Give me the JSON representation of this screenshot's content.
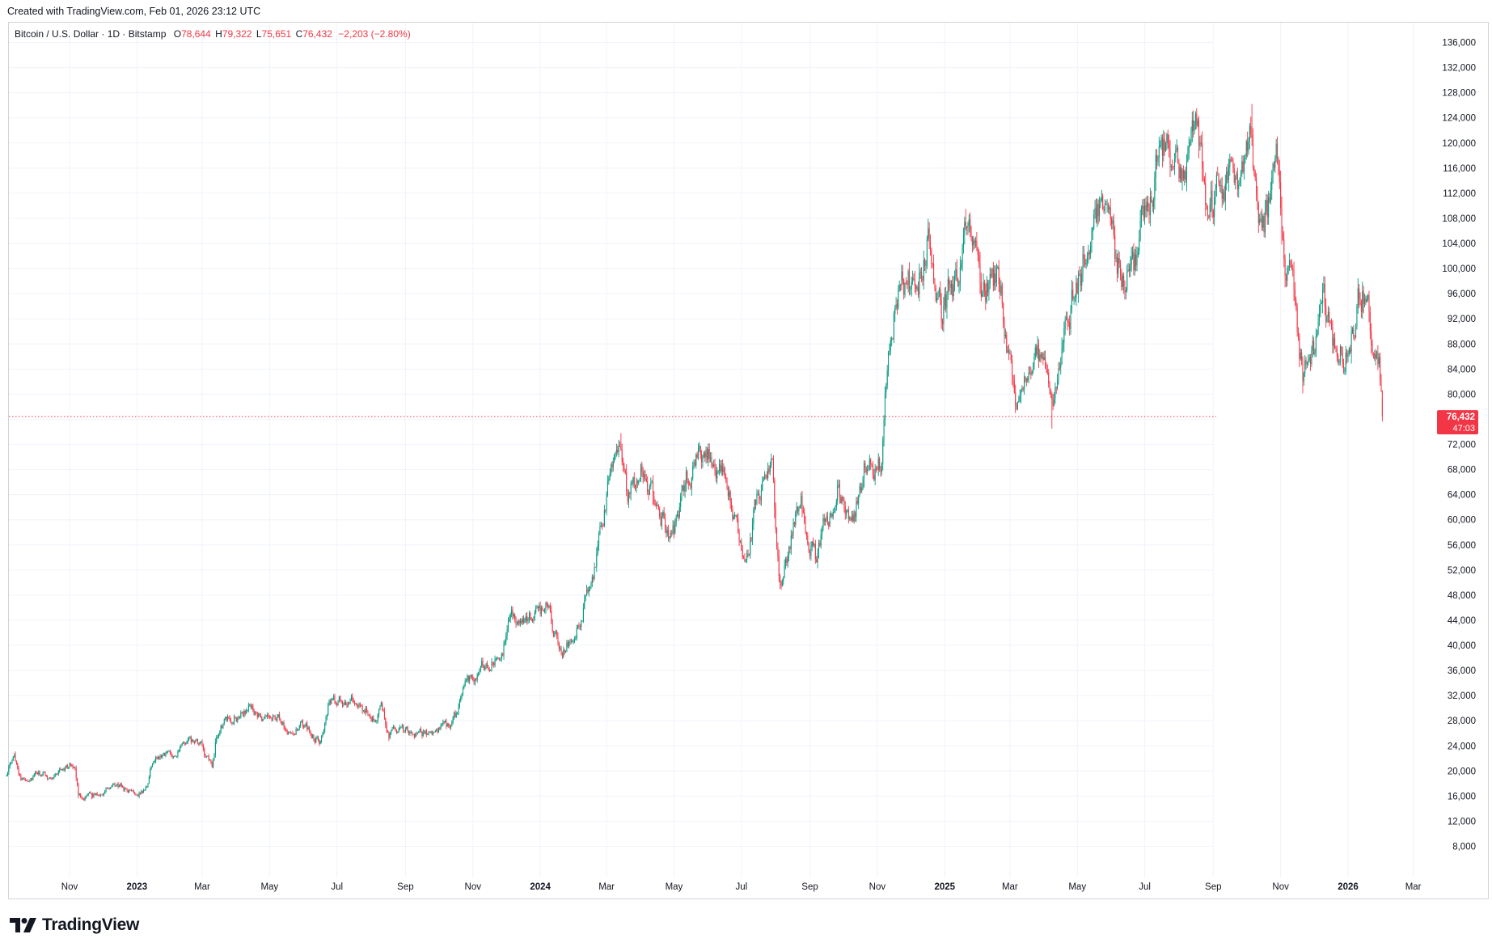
{
  "header": {
    "created_text": "Created with TradingView.com, Feb 01, 2026 23:12 UTC"
  },
  "legend": {
    "symbol": "Bitcoin / U.S. Dollar · 1D · Bitstamp",
    "open_label": "O",
    "open": "78,644",
    "high_label": "H",
    "high": "79,322",
    "low_label": "L",
    "low": "75,651",
    "close_label": "C",
    "close": "76,432",
    "change": "−2,203 (−2.80%)"
  },
  "price_tag": {
    "price": "76,432",
    "countdown": "47:03"
  },
  "footer": {
    "brand": "TradingView"
  },
  "colors": {
    "up": "#089981",
    "down": "#f23645",
    "grid": "#f0f3fa",
    "axis_text": "#131722",
    "border": "#d1d4dc"
  },
  "chart_data": {
    "type": "candlestick",
    "interval": "1D",
    "y_axis": {
      "ticks": [
        8000,
        12000,
        16000,
        20000,
        24000,
        28000,
        32000,
        36000,
        40000,
        44000,
        48000,
        52000,
        56000,
        60000,
        64000,
        68000,
        72000,
        76000,
        80000,
        84000,
        88000,
        92000,
        96000,
        100000,
        104000,
        108000,
        112000,
        116000,
        120000,
        124000,
        128000,
        132000,
        136000
      ],
      "tick_labels": [
        "8,000",
        "12,000",
        "16,000",
        "20,000",
        "24,000",
        "28,000",
        "32,000",
        "36,000",
        "40,000",
        "44,000",
        "48,000",
        "52,000",
        "56,000",
        "60,000",
        "64,000",
        "68,000",
        "72,000",
        "76,000",
        "80,000",
        "84,000",
        "88,000",
        "92,000",
        "96,000",
        "100,000",
        "104,000",
        "108,000",
        "112,000",
        "116,000",
        "120,000",
        "124,000",
        "128,000",
        "132,000",
        "136,000"
      ],
      "position": "right"
    },
    "x_axis": {
      "ticks": [
        {
          "label": "Nov",
          "date": "2022-11-01",
          "bold": false
        },
        {
          "label": "2023",
          "date": "2023-01-01",
          "bold": true
        },
        {
          "label": "Mar",
          "date": "2023-03-01",
          "bold": false
        },
        {
          "label": "May",
          "date": "2023-05-01",
          "bold": false
        },
        {
          "label": "Jul",
          "date": "2023-07-01",
          "bold": false
        },
        {
          "label": "Sep",
          "date": "2023-09-01",
          "bold": false
        },
        {
          "label": "Nov",
          "date": "2023-11-01",
          "bold": false
        },
        {
          "label": "2024",
          "date": "2024-01-01",
          "bold": true
        },
        {
          "label": "Mar",
          "date": "2024-03-01",
          "bold": false
        },
        {
          "label": "May",
          "date": "2024-05-01",
          "bold": false
        },
        {
          "label": "Jul",
          "date": "2024-07-01",
          "bold": false
        },
        {
          "label": "Sep",
          "date": "2024-09-01",
          "bold": false
        },
        {
          "label": "Nov",
          "date": "2024-11-01",
          "bold": false
        },
        {
          "label": "2025",
          "date": "2025-01-01",
          "bold": true
        },
        {
          "label": "Mar",
          "date": "2025-03-01",
          "bold": false
        },
        {
          "label": "May",
          "date": "2025-05-01",
          "bold": false
        },
        {
          "label": "Jul",
          "date": "2025-07-01",
          "bold": false
        },
        {
          "label": "Sep",
          "date": "2025-09-01",
          "bold": false
        },
        {
          "label": "Nov",
          "date": "2025-11-01",
          "bold": false
        },
        {
          "label": "2026",
          "date": "2026-01-01",
          "bold": true
        },
        {
          "label": "Mar",
          "date": "2026-03-01",
          "bold": false
        }
      ]
    },
    "date_range": [
      "2022-09-05",
      "2026-03-30"
    ],
    "last_close": 76432,
    "grid": true,
    "price_path": [
      [
        "2022-09-05",
        19700
      ],
      [
        "2022-09-12",
        21800
      ],
      [
        "2022-09-19",
        18900
      ],
      [
        "2022-10-01",
        19400
      ],
      [
        "2022-10-15",
        19100
      ],
      [
        "2022-10-28",
        20800
      ],
      [
        "2022-11-06",
        21000
      ],
      [
        "2022-11-09",
        16200
      ],
      [
        "2022-11-21",
        15800
      ],
      [
        "2022-12-05",
        17100
      ],
      [
        "2022-12-15",
        17400
      ],
      [
        "2022-12-31",
        16600
      ],
      [
        "2023-01-10",
        17200
      ],
      [
        "2023-01-14",
        20900
      ],
      [
        "2023-01-25",
        23000
      ],
      [
        "2023-02-07",
        23200
      ],
      [
        "2023-02-16",
        24400
      ],
      [
        "2023-03-01",
        23600
      ],
      [
        "2023-03-10",
        20300
      ],
      [
        "2023-03-13",
        24200
      ],
      [
        "2023-03-18",
        27500
      ],
      [
        "2023-04-01",
        28400
      ],
      [
        "2023-04-14",
        30400
      ],
      [
        "2023-04-25",
        27500
      ],
      [
        "2023-05-06",
        29000
      ],
      [
        "2023-05-15",
        27100
      ],
      [
        "2023-06-01",
        27000
      ],
      [
        "2023-06-15",
        25100
      ],
      [
        "2023-06-23",
        30500
      ],
      [
        "2023-07-05",
        30700
      ],
      [
        "2023-07-13",
        31400
      ],
      [
        "2023-07-25",
        29300
      ],
      [
        "2023-08-10",
        29500
      ],
      [
        "2023-08-17",
        26200
      ],
      [
        "2023-09-01",
        26000
      ],
      [
        "2023-09-11",
        25200
      ],
      [
        "2023-09-25",
        26300
      ],
      [
        "2023-10-10",
        27200
      ],
      [
        "2023-10-16",
        28400
      ],
      [
        "2023-10-24",
        34000
      ],
      [
        "2023-11-10",
        37000
      ],
      [
        "2023-11-25",
        37800
      ],
      [
        "2023-12-05",
        44000
      ],
      [
        "2023-12-20",
        43500
      ],
      [
        "2024-01-10",
        46500
      ],
      [
        "2024-01-12",
        42800
      ],
      [
        "2024-01-23",
        39600
      ],
      [
        "2024-02-08",
        45500
      ],
      [
        "2024-02-20",
        52000
      ],
      [
        "2024-02-28",
        62000
      ],
      [
        "2024-03-05",
        66500
      ],
      [
        "2024-03-14",
        73000
      ],
      [
        "2024-03-20",
        62500
      ],
      [
        "2024-04-01",
        70000
      ],
      [
        "2024-04-17",
        61300
      ],
      [
        "2024-05-01",
        57800
      ],
      [
        "2024-05-20",
        71200
      ],
      [
        "2024-06-07",
        70800
      ],
      [
        "2024-06-24",
        60200
      ],
      [
        "2024-07-05",
        54000
      ],
      [
        "2024-07-15",
        62800
      ],
      [
        "2024-07-29",
        68200
      ],
      [
        "2024-08-05",
        50000
      ],
      [
        "2024-08-24",
        64000
      ],
      [
        "2024-09-06",
        53500
      ],
      [
        "2024-09-27",
        65800
      ],
      [
        "2024-10-10",
        60200
      ],
      [
        "2024-10-21",
        69000
      ],
      [
        "2024-11-05",
        69500
      ],
      [
        "2024-11-11",
        88500
      ],
      [
        "2024-11-22",
        98500
      ],
      [
        "2024-12-05",
        96500
      ],
      [
        "2024-12-17",
        106000
      ],
      [
        "2024-12-30",
        92500
      ],
      [
        "2025-01-07",
        97000
      ],
      [
        "2025-01-13",
        94200
      ],
      [
        "2025-01-20",
        106000
      ],
      [
        "2025-02-03",
        97800
      ],
      [
        "2025-02-20",
        98000
      ],
      [
        "2025-03-04",
        83500
      ],
      [
        "2025-03-10",
        78500
      ],
      [
        "2025-03-25",
        87500
      ],
      [
        "2025-04-08",
        76300
      ],
      [
        "2025-04-22",
        93500
      ],
      [
        "2025-05-10",
        103500
      ],
      [
        "2025-05-22",
        111000
      ],
      [
        "2025-06-05",
        101500
      ],
      [
        "2025-06-22",
        100500
      ],
      [
        "2025-07-01",
        107500
      ],
      [
        "2025-07-14",
        121000
      ],
      [
        "2025-07-25",
        117500
      ],
      [
        "2025-08-02",
        112800
      ],
      [
        "2025-08-14",
        123500
      ],
      [
        "2025-08-25",
        111000
      ],
      [
        "2025-09-01",
        108500
      ],
      [
        "2025-09-18",
        117500
      ],
      [
        "2025-09-25",
        109000
      ],
      [
        "2025-10-06",
        124500
      ],
      [
        "2025-10-10",
        113000
      ],
      [
        "2025-10-17",
        106500
      ],
      [
        "2025-10-28",
        114500
      ],
      [
        "2025-11-05",
        103500
      ],
      [
        "2025-11-14",
        95500
      ],
      [
        "2025-11-21",
        83500
      ],
      [
        "2025-12-01",
        86500
      ],
      [
        "2025-12-10",
        92500
      ],
      [
        "2025-12-18",
        86000
      ],
      [
        "2025-12-31",
        87500
      ],
      [
        "2026-01-14",
        96500
      ],
      [
        "2026-01-25",
        88000
      ],
      [
        "2026-01-29",
        84500
      ],
      [
        "2026-02-01",
        76432
      ]
    ],
    "extremes": [
      {
        "date": "2022-11-21",
        "value": 15500
      },
      {
        "date": "2024-03-14",
        "value": 73800
      },
      {
        "date": "2024-08-05",
        "value": 49000
      },
      {
        "date": "2025-01-20",
        "value": 109500
      },
      {
        "date": "2025-04-08",
        "value": 74500
      },
      {
        "date": "2025-10-06",
        "value": 126200
      }
    ]
  }
}
